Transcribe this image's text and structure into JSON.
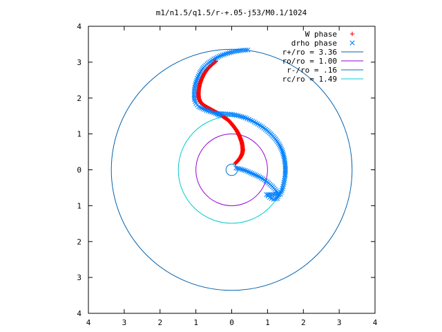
{
  "chart_data": {
    "type": "scatter",
    "title": "m1/n1.5/q1.5/r-+.05-j53/M0.1/1024",
    "xlim": [
      -4,
      4
    ],
    "ylim": [
      -4,
      4
    ],
    "xticks": [
      -4,
      -3,
      -2,
      -1,
      0,
      1,
      2,
      3,
      4
    ],
    "yticks": [
      -4,
      -3,
      -2,
      -1,
      0,
      1,
      2,
      3,
      4
    ],
    "xtick_labels": [
      "4",
      "3",
      "2",
      "1",
      "0",
      "1",
      "2",
      "3",
      "4"
    ],
    "ytick_labels": [
      "4",
      "3",
      "2",
      "1",
      "0",
      "1",
      "2",
      "3",
      "4"
    ],
    "grid": false,
    "legend_position": "top-right",
    "series": [
      {
        "name": "W phase",
        "kind": "points",
        "marker": "+",
        "color": "#ff0000",
        "points": [
          [
            0.1,
            0.18
          ],
          [
            0.17,
            0.25
          ],
          [
            0.24,
            0.34
          ],
          [
            0.29,
            0.44
          ],
          [
            0.31,
            0.55
          ],
          [
            0.3,
            0.66
          ],
          [
            0.28,
            0.77
          ],
          [
            0.24,
            0.88
          ],
          [
            0.2,
            0.98
          ],
          [
            0.14,
            1.09
          ],
          [
            0.07,
            1.19
          ],
          [
            -0.01,
            1.29
          ],
          [
            -0.09,
            1.38
          ],
          [
            -0.19,
            1.45
          ],
          [
            -0.31,
            1.53
          ],
          [
            -0.43,
            1.6
          ],
          [
            -0.56,
            1.67
          ],
          [
            -0.69,
            1.74
          ],
          [
            -0.8,
            1.81
          ],
          [
            -0.88,
            1.9
          ],
          [
            -0.92,
            2.0
          ],
          [
            -0.93,
            2.12
          ],
          [
            -0.92,
            2.25
          ],
          [
            -0.89,
            2.4
          ],
          [
            -0.84,
            2.54
          ],
          [
            -0.77,
            2.68
          ],
          [
            -0.68,
            2.81
          ],
          [
            -0.56,
            2.93
          ],
          [
            -0.44,
            3.03
          ]
        ]
      },
      {
        "name": "drho phase",
        "kind": "points",
        "marker": "x",
        "color": "#0080ff",
        "points": [
          [
            0.12,
            0.05
          ],
          [
            0.25,
            0.02
          ],
          [
            0.38,
            -0.02
          ],
          [
            0.52,
            -0.08
          ],
          [
            0.65,
            -0.14
          ],
          [
            0.78,
            -0.2
          ],
          [
            0.91,
            -0.28
          ],
          [
            1.03,
            -0.37
          ],
          [
            1.14,
            -0.47
          ],
          [
            1.24,
            -0.58
          ],
          [
            1.31,
            -0.7
          ],
          [
            1.27,
            -0.8
          ],
          [
            1.17,
            -0.82
          ],
          [
            1.06,
            -0.77
          ],
          [
            0.97,
            -0.69
          ],
          [
            1.36,
            -0.68
          ],
          [
            1.42,
            -0.52
          ],
          [
            1.46,
            -0.35
          ],
          [
            1.49,
            -0.18
          ],
          [
            1.5,
            0.0
          ],
          [
            1.49,
            0.18
          ],
          [
            1.46,
            0.36
          ],
          [
            1.41,
            0.53
          ],
          [
            1.33,
            0.7
          ],
          [
            1.22,
            0.86
          ],
          [
            1.09,
            1.0
          ],
          [
            0.94,
            1.13
          ],
          [
            0.77,
            1.25
          ],
          [
            0.58,
            1.36
          ],
          [
            0.38,
            1.45
          ],
          [
            0.18,
            1.51
          ],
          [
            -0.02,
            1.55
          ],
          [
            -0.22,
            1.56
          ],
          [
            -0.4,
            1.57
          ],
          [
            -0.32,
            1.51
          ],
          [
            -0.5,
            1.59
          ],
          [
            -0.66,
            1.64
          ],
          [
            -0.8,
            1.7
          ],
          [
            -0.92,
            1.76
          ],
          [
            -1.0,
            1.85
          ],
          [
            -1.04,
            1.96
          ],
          [
            -1.05,
            2.1
          ],
          [
            -1.04,
            2.25
          ],
          [
            -1.01,
            2.4
          ],
          [
            -0.96,
            2.55
          ],
          [
            -0.89,
            2.7
          ],
          [
            -0.79,
            2.85
          ],
          [
            -0.65,
            2.98
          ],
          [
            -0.49,
            3.09
          ],
          [
            -0.31,
            3.18
          ],
          [
            -0.11,
            3.25
          ],
          [
            0.09,
            3.3
          ],
          [
            0.28,
            3.33
          ],
          [
            0.45,
            3.34
          ]
        ]
      },
      {
        "name": "r+/ro = 3.36",
        "kind": "circle",
        "radius": 3.36,
        "color": "#0060ad"
      },
      {
        "name": "ro/ro = 1.00",
        "kind": "circle",
        "radius": 1.0,
        "color": "#9400d3"
      },
      {
        "name": "r-/ro = .16",
        "kind": "circle",
        "radius": 0.16,
        "color": "#0072bd"
      },
      {
        "name": "rc/ro = 1.49",
        "kind": "circle",
        "radius": 1.49,
        "color": "#00cccc"
      }
    ]
  }
}
